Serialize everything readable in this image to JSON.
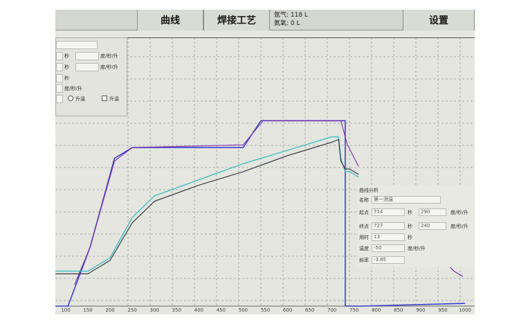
{
  "toolbar": {
    "curve_label": "曲线",
    "weld_label": "焊接工艺",
    "gas_line1": "氩气: 118 L",
    "gas_line2": "氮氧: 0 L",
    "settings_label": "设置"
  },
  "params": {
    "row1_unit1": "秒",
    "row1_unit2": "度/秒/升",
    "row2_unit1": "秒",
    "row2_unit2": "度/秒/升",
    "row3_unit": "秒",
    "row4_unit": "度/秒/升",
    "radio_label": "升温",
    "checkbox_label": "升温"
  },
  "analysis": {
    "title": "曲线分析",
    "name_label": "名称",
    "name_value": "第一测温",
    "start_label": "起点",
    "start_value": "714",
    "start_unit": "秒",
    "start_value2": "290",
    "start_unit2": "度/秒/升",
    "end_label": "终点",
    "end_value": "727",
    "end_unit": "秒",
    "end_value2": "240",
    "end_unit2": "度/秒/升",
    "duration_label": "用时",
    "duration_value": "13",
    "duration_unit": "秒",
    "temp_diff_label": "温度",
    "temp_diff_value": "-50",
    "temp_diff_unit": "度/秒/升",
    "slope_label": "斜率",
    "slope_value": "-3.85"
  },
  "chart_data": {
    "type": "line",
    "x_ticks": [
      "100",
      "150",
      "200",
      "250",
      "300",
      "350",
      "400",
      "450",
      "500",
      "550",
      "600",
      "650",
      "700",
      "750",
      "800",
      "850",
      "900",
      "950",
      "1000"
    ],
    "xlim": [
      75,
      1000
    ],
    "ylim": [
      0,
      1
    ],
    "grid": true,
    "colors": {
      "setpoint": "#3b3fcf",
      "setpoint_trace": "#7a2fb0",
      "measured_cyan": "#3fbfc1",
      "measured_dark": "#2a2d38"
    },
    "series": [
      {
        "key": "setpoint",
        "x": [
          75,
          105,
          155,
          210,
          250,
          500,
          540,
          720,
          730,
          730,
          770,
          1000
        ],
        "y": [
          0.0,
          0.0,
          0.22,
          0.55,
          0.59,
          0.59,
          0.69,
          0.69,
          0.69,
          0.0,
          0.0,
          0.01
        ]
      },
      {
        "key": "setpoint_trace",
        "x": [
          120,
          155,
          210,
          250,
          500,
          545,
          720,
          735,
          760
        ],
        "y": [
          0.08,
          0.22,
          0.54,
          0.59,
          0.6,
          0.69,
          0.69,
          0.6,
          0.52
        ]
      },
      {
        "key": "measured_cyan",
        "x": [
          75,
          150,
          200,
          250,
          300,
          400,
          500,
          600,
          700,
          715,
          720,
          730,
          740,
          760
        ],
        "y": [
          0.13,
          0.13,
          0.18,
          0.33,
          0.41,
          0.47,
          0.53,
          0.58,
          0.63,
          0.63,
          0.55,
          0.5,
          0.5,
          0.48
        ]
      },
      {
        "key": "measured_dark",
        "x": [
          75,
          150,
          200,
          250,
          300,
          400,
          500,
          600,
          700,
          715,
          720,
          730,
          740,
          760
        ],
        "y": [
          0.12,
          0.12,
          0.17,
          0.31,
          0.39,
          0.45,
          0.5,
          0.56,
          0.61,
          0.62,
          0.54,
          0.51,
          0.51,
          0.49
        ]
      },
      {
        "key": "tail_purple",
        "x": [
          940,
          975,
          995
        ],
        "y": [
          0.19,
          0.13,
          0.11
        ]
      },
      {
        "key": "tail_cyan",
        "x": [
          945,
          975,
          995
        ],
        "y": [
          0.19,
          0.17,
          0.15
        ]
      }
    ]
  }
}
